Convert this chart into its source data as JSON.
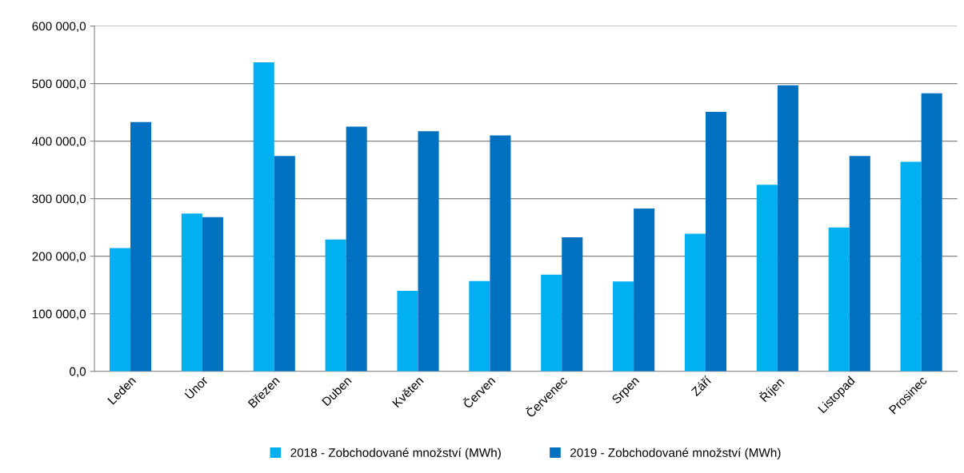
{
  "chart_data": {
    "type": "bar",
    "categories": [
      "Leden",
      "Únor",
      "Březen",
      "Duben",
      "Květen",
      "Červen",
      "Červenec",
      "Srpen",
      "Září",
      "Říjen",
      "Listopad",
      "Prosinec"
    ],
    "series": [
      {
        "name": "2018 - Zobchodované množství (MWh)",
        "color": "#00b0f0",
        "values": [
          214000,
          274000,
          537000,
          229000,
          140000,
          157000,
          168000,
          156000,
          239000,
          324000,
          250000,
          364000
        ]
      },
      {
        "name": "2019 - Zobchodované množství (MWh)",
        "color": "#0070c0",
        "values": [
          433000,
          268000,
          374000,
          425000,
          417000,
          410000,
          233000,
          283000,
          451000,
          497000,
          374000,
          483000
        ]
      }
    ],
    "ylim": [
      0,
      600000
    ],
    "yticks": [
      {
        "value": 0,
        "label": "0,0"
      },
      {
        "value": 100000,
        "label": "100 000,0"
      },
      {
        "value": 200000,
        "label": "200 000,0"
      },
      {
        "value": 300000,
        "label": "300 000,0"
      },
      {
        "value": 400000,
        "label": "400 000,0"
      },
      {
        "value": 500000,
        "label": "500 000,0"
      },
      {
        "value": 600000,
        "label": "600 000,0"
      }
    ],
    "grid": "y",
    "legend": "bottom"
  }
}
